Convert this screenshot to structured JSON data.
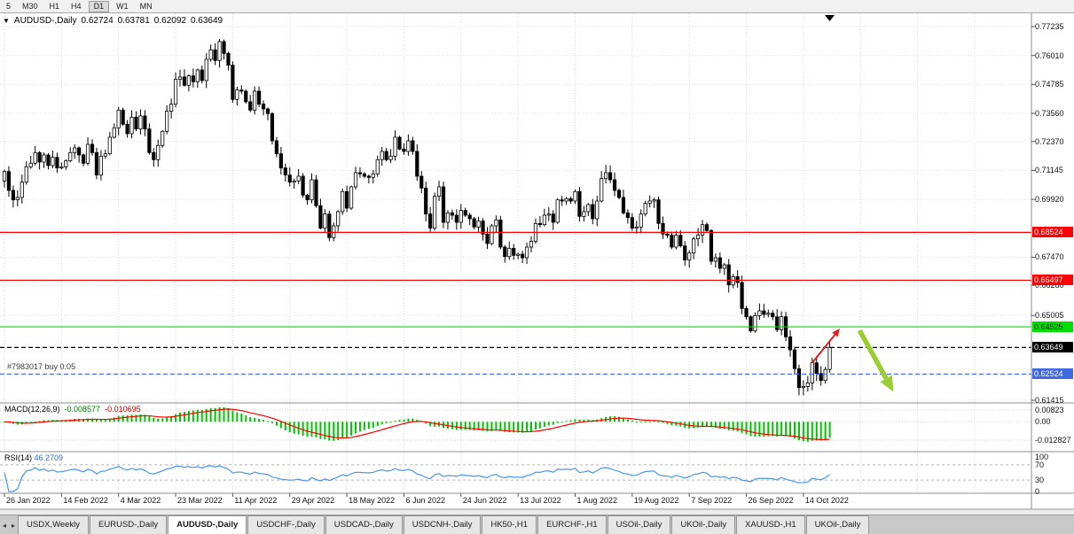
{
  "toolbar": {
    "timeframes": [
      "5",
      "M30",
      "H1",
      "H4",
      "D1",
      "W1",
      "MN"
    ],
    "active": "D1"
  },
  "chart": {
    "title": {
      "symbol": "AUDUSD-,Daily",
      "open": "0.62724",
      "high": "0.63781",
      "low": "0.62092",
      "close": "0.63649"
    },
    "trade_line_label": "#7983017 buy 0.05",
    "price_axis_labels": [
      "0.77235",
      "0.76010",
      "0.74785",
      "0.73560",
      "0.72370",
      "0.71145",
      "0.69920",
      "0.67470",
      "0.66280",
      "0.65005",
      "0.61415"
    ],
    "levels": [
      {
        "name": "resistance-1",
        "price": 0.68524,
        "label": "0.68524",
        "color": "#FF0000",
        "dash": false,
        "tag_bg": "#FF0000",
        "tag_fg": "#FFFFFF"
      },
      {
        "name": "resistance-2",
        "price": 0.66497,
        "label": "0.66497",
        "color": "#FF0000",
        "dash": false,
        "tag_bg": "#FF0000",
        "tag_fg": "#FFFFFF"
      },
      {
        "name": "support-green",
        "price": 0.64525,
        "label": "0.64525",
        "color": "#00DE00",
        "dash": false,
        "tag_bg": "#00DE00",
        "tag_fg": "#003300"
      },
      {
        "name": "current-price",
        "price": 0.63649,
        "label": "0.63649",
        "color": "#000000",
        "dash": true,
        "tag_bg": "#000000",
        "tag_fg": "#FFFFFF"
      },
      {
        "name": "buy-order",
        "price": 0.62524,
        "label": "0.62524",
        "color": "#4169E1",
        "dash": true,
        "tag_bg": "#4169E1",
        "tag_fg": "#FFFFFF"
      }
    ],
    "macd": {
      "label": "MACD(12,26,9)",
      "main_value": "-0.008577",
      "signal_value": "-0.010695",
      "axis_labels": [
        "0.00823",
        "0.00",
        "-0.012827"
      ],
      "histogram_color": "#00C400",
      "signal_color": "#FF0000"
    },
    "rsi": {
      "label": "RSI(14)",
      "value": "46.2709",
      "axis_labels": [
        "100",
        "70",
        "30",
        "0"
      ],
      "levels": [
        70,
        30
      ],
      "line_color": "#4795EB"
    }
  },
  "chart_data": {
    "type": "candlestick",
    "symbol": "AUDUSD",
    "timeframe": "Daily",
    "y_min": 0.61415,
    "y_max": 0.77235,
    "up_color": "#FFFFFF",
    "down_color": "#000000",
    "outline": "#000000",
    "date_label_step_days": 13,
    "date_labels": [
      "26 Jan 2022",
      "14 Feb 2022",
      "4 Mar 2022",
      "23 Mar 2022",
      "11 Apr 2022",
      "29 Apr 2022",
      "18 May 2022",
      "6 Jun 2022",
      "24 Jun 2022",
      "13 Jul 2022",
      "1 Aug 2022",
      "19 Aug 2022",
      "7 Sep 2022",
      "26 Sep 2022",
      "14 Oct 2022"
    ],
    "closes": [
      0.711,
      0.703,
      0.699,
      0.7,
      0.7065,
      0.713,
      0.7145,
      0.719,
      0.715,
      0.718,
      0.7135,
      0.717,
      0.7125,
      0.713,
      0.7155,
      0.719,
      0.721,
      0.718,
      0.7145,
      0.7225,
      0.719,
      0.7095,
      0.7175,
      0.7185,
      0.7255,
      0.7295,
      0.737,
      0.731,
      0.727,
      0.734,
      0.729,
      0.7345,
      0.729,
      0.719,
      0.716,
      0.722,
      0.728,
      0.7365,
      0.7395,
      0.75,
      0.751,
      0.7475,
      0.7515,
      0.749,
      0.754,
      0.7495,
      0.7585,
      0.7625,
      0.758,
      0.766,
      0.761,
      0.756,
      0.7415,
      0.7455,
      0.745,
      0.7405,
      0.737,
      0.745,
      0.7395,
      0.7375,
      0.7355,
      0.724,
      0.7185,
      0.7125,
      0.7095,
      0.7065,
      0.707,
      0.709,
      0.701,
      0.699,
      0.7075,
      0.6965,
      0.687,
      0.693,
      0.683,
      0.688,
      0.694,
      0.7025,
      0.6955,
      0.7045,
      0.7105,
      0.71,
      0.709,
      0.7085,
      0.71,
      0.716,
      0.7195,
      0.716,
      0.7175,
      0.7255,
      0.7205,
      0.7195,
      0.724,
      0.7195,
      0.709,
      0.704,
      0.693,
      0.687,
      0.7005,
      0.7045,
      0.6895,
      0.6935,
      0.6925,
      0.6895,
      0.6945,
      0.6925,
      0.691,
      0.6875,
      0.69,
      0.6845,
      0.6805,
      0.688,
      0.6905,
      0.679,
      0.675,
      0.6785,
      0.6755,
      0.676,
      0.6745,
      0.679,
      0.6815,
      0.689,
      0.6885,
      0.6925,
      0.693,
      0.6895,
      0.699,
      0.6985,
      0.6995,
      0.6985,
      0.7025,
      0.692,
      0.694,
      0.697,
      0.691,
      0.6985,
      0.708,
      0.7105,
      0.7075,
      0.703,
      0.7,
      0.6935,
      0.6915,
      0.687,
      0.6875,
      0.693,
      0.6975,
      0.6985,
      0.699,
      0.689,
      0.6845,
      0.684,
      0.679,
      0.684,
      0.6795,
      0.6735,
      0.6765,
      0.6825,
      0.684,
      0.6885,
      0.686,
      0.673,
      0.6745,
      0.67,
      0.6715,
      0.663,
      0.6665,
      0.664,
      0.653,
      0.6495,
      0.6435,
      0.65,
      0.652,
      0.6505,
      0.651,
      0.6495,
      0.644,
      0.6495,
      0.641,
      0.6355,
      0.6275,
      0.6195,
      0.62,
      0.6215,
      0.63,
      0.6255,
      0.6225,
      0.6272,
      0.63649
    ]
  },
  "annotations": {
    "arrows": [
      {
        "name": "red-up-arrow",
        "color": "#E02020",
        "width": 2,
        "head": 9,
        "from_day": 184,
        "from_price": 0.63,
        "to_day": 190.3,
        "to_price": 0.6445
      },
      {
        "name": "green-down-arrow",
        "color": "#9ACD32",
        "width": 5.5,
        "head": 17,
        "from_day": 194.8,
        "from_price": 0.6437,
        "to_day": 202.5,
        "to_price": 0.6178
      }
    ]
  },
  "tabs": {
    "items": [
      "USDX,Weekly",
      "EURUSD-,Daily",
      "AUDUSD-,Daily",
      "USDCHF-,Daily",
      "USDCAD-,Daily",
      "USDCNH-,Daily",
      "HK50-,H1",
      "EURCHF-,H1",
      "USOil-,Daily",
      "UKOil-,Daily",
      "XAUUSD-,H1",
      "UKOil-,Daily"
    ],
    "active_index": 2
  }
}
